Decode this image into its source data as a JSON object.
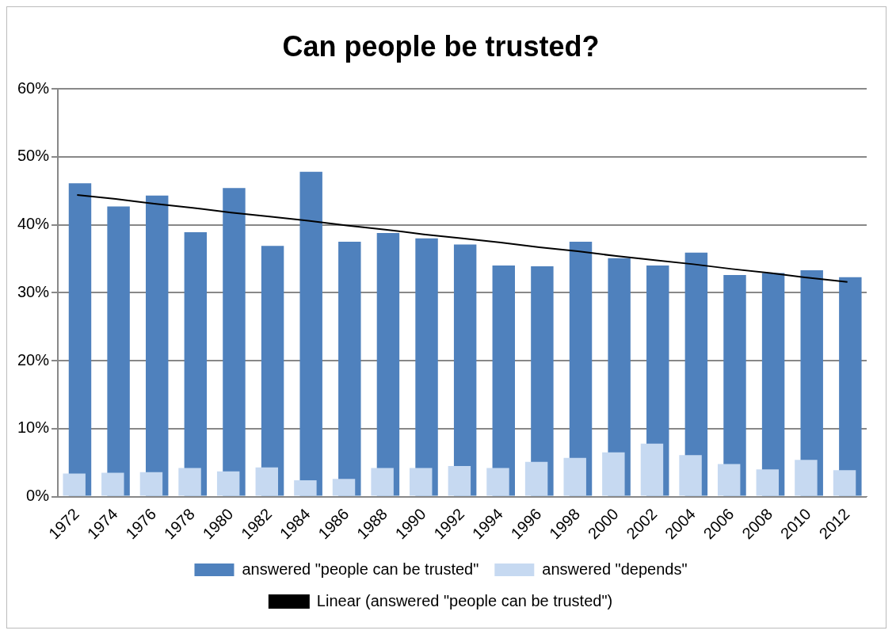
{
  "chart_data": {
    "type": "bar",
    "title": "Can people be trusted?",
    "categories": [
      "1972",
      "1974",
      "1976",
      "1978",
      "1980",
      "1982",
      "1984",
      "1986",
      "1988",
      "1990",
      "1992",
      "1994",
      "1996",
      "1998",
      "2000",
      "2002",
      "2004",
      "2006",
      "2008",
      "2010",
      "2012"
    ],
    "series": [
      {
        "name": "answered \"people can be trusted\"",
        "color": "#4f81bd",
        "values": [
          46.1,
          42.7,
          44.3,
          38.9,
          45.4,
          36.9,
          47.8,
          37.5,
          38.8,
          38.0,
          37.1,
          34.0,
          33.9,
          37.5,
          35.1,
          34.0,
          35.9,
          32.6,
          32.9,
          33.3,
          32.3
        ]
      },
      {
        "name": "answered \"depends\"",
        "color": "#c6d9f1",
        "values": [
          3.4,
          3.5,
          3.6,
          4.2,
          3.7,
          4.3,
          2.4,
          2.6,
          4.2,
          4.2,
          4.5,
          4.2,
          5.1,
          5.7,
          6.5,
          7.8,
          6.1,
          4.8,
          4.0,
          5.4,
          3.9
        ]
      },
      {
        "name": "Linear (answered \"people can be trusted\")",
        "type": "line",
        "color": "#000000",
        "values": [
          44.4,
          43.8,
          43.1,
          42.5,
          41.8,
          41.2,
          40.6,
          39.9,
          39.3,
          38.6,
          38.0,
          37.4,
          36.7,
          36.1,
          35.4,
          34.8,
          34.2,
          33.5,
          32.9,
          32.2,
          31.6
        ]
      }
    ],
    "ylim": [
      0,
      60
    ],
    "yticks": [
      {
        "value": 0,
        "label": "0%"
      },
      {
        "value": 10,
        "label": "10%"
      },
      {
        "value": 20,
        "label": "20%"
      },
      {
        "value": 30,
        "label": "30%"
      },
      {
        "value": 40,
        "label": "40%"
      },
      {
        "value": 50,
        "label": "50%"
      },
      {
        "value": 60,
        "label": "60%"
      }
    ],
    "grid": "y",
    "legend": "bottom",
    "marker": "none"
  }
}
